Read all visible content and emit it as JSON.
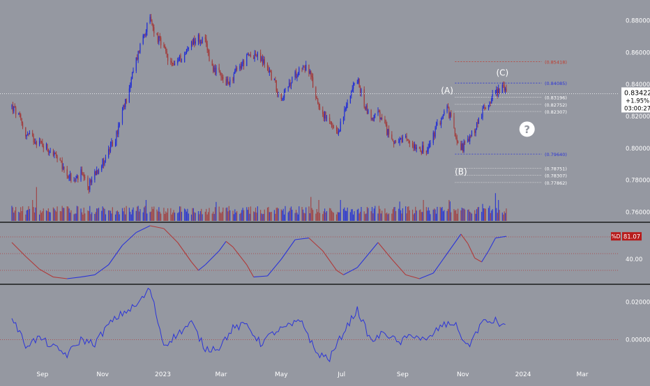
{
  "chart_data": {
    "type": "line",
    "background": "#9598a1",
    "colors": {
      "up": "#1f2bd6",
      "down": "#a23a3a",
      "stoch": "#2b34d8",
      "stoch_down": "#b03a3a",
      "osc": "#2b34d8",
      "fib_red": "#c0392b",
      "fib_blue": "#2b34d8",
      "fib_white": "#e8e8e8",
      "current_price": "#ffffff",
      "stoch_badge": "#b71c1c"
    },
    "x_axis": {
      "labels": [
        {
          "t": "2022-09-01",
          "text": "Sep"
        },
        {
          "t": "2022-11-01",
          "text": "Nov"
        },
        {
          "t": "2023-01-01",
          "text": "2023"
        },
        {
          "t": "2023-03-01",
          "text": "Mar"
        },
        {
          "t": "2023-05-01",
          "text": "May"
        },
        {
          "t": "2023-07-01",
          "text": "Jul"
        },
        {
          "t": "2023-09-01",
          "text": "Sep"
        },
        {
          "t": "2023-11-01",
          "text": "Nov"
        },
        {
          "t": "2024-01-01",
          "text": "2024"
        },
        {
          "t": "2024-03-01",
          "text": "Mar"
        }
      ]
    },
    "price_panel": {
      "ylim": [
        0.755,
        0.885
      ],
      "y_ticks": [
        "0.88000",
        "0.86000",
        "0.84000",
        "0.82000",
        "0.80000",
        "0.78000",
        "0.76000"
      ],
      "y_tick_values": [
        0.88,
        0.86,
        0.84,
        0.82,
        0.8,
        0.78,
        0.76
      ],
      "series_close": [
        [
          "2022-08-01",
          0.826
        ],
        [
          "2022-08-08",
          0.82
        ],
        [
          "2022-08-15",
          0.809
        ],
        [
          "2022-08-22",
          0.806
        ],
        [
          "2022-08-29",
          0.804
        ],
        [
          "2022-09-05",
          0.801
        ],
        [
          "2022-09-12",
          0.797
        ],
        [
          "2022-09-19",
          0.79
        ],
        [
          "2022-09-26",
          0.784
        ],
        [
          "2022-10-03",
          0.779
        ],
        [
          "2022-10-10",
          0.784
        ],
        [
          "2022-10-17",
          0.775
        ],
        [
          "2022-10-24",
          0.785
        ],
        [
          "2022-10-31",
          0.79
        ],
        [
          "2022-11-07",
          0.798
        ],
        [
          "2022-11-14",
          0.806
        ],
        [
          "2022-11-21",
          0.822
        ],
        [
          "2022-11-28",
          0.838
        ],
        [
          "2022-12-05",
          0.855
        ],
        [
          "2022-12-12",
          0.871
        ],
        [
          "2022-12-19",
          0.88
        ],
        [
          "2022-12-26",
          0.87
        ],
        [
          "2023-01-02",
          0.862
        ],
        [
          "2023-01-09",
          0.852
        ],
        [
          "2023-01-16",
          0.855
        ],
        [
          "2023-01-23",
          0.858
        ],
        [
          "2023-01-30",
          0.867
        ],
        [
          "2023-02-06",
          0.869
        ],
        [
          "2023-02-13",
          0.866
        ],
        [
          "2023-02-20",
          0.851
        ],
        [
          "2023-02-27",
          0.846
        ],
        [
          "2023-03-06",
          0.84
        ],
        [
          "2023-03-13",
          0.845
        ],
        [
          "2023-03-20",
          0.851
        ],
        [
          "2023-03-27",
          0.856
        ],
        [
          "2023-04-03",
          0.859
        ],
        [
          "2023-04-10",
          0.856
        ],
        [
          "2023-04-17",
          0.851
        ],
        [
          "2023-04-24",
          0.841
        ],
        [
          "2023-05-01",
          0.832
        ],
        [
          "2023-05-08",
          0.838
        ],
        [
          "2023-05-15",
          0.846
        ],
        [
          "2023-05-22",
          0.852
        ],
        [
          "2023-05-29",
          0.849
        ],
        [
          "2023-06-05",
          0.832
        ],
        [
          "2023-06-12",
          0.822
        ],
        [
          "2023-06-19",
          0.815
        ],
        [
          "2023-06-26",
          0.808
        ],
        [
          "2023-07-03",
          0.82
        ],
        [
          "2023-07-10",
          0.836
        ],
        [
          "2023-07-17",
          0.843
        ],
        [
          "2023-07-24",
          0.828
        ],
        [
          "2023-07-31",
          0.818
        ],
        [
          "2023-08-07",
          0.822
        ],
        [
          "2023-08-14",
          0.813
        ],
        [
          "2023-08-21",
          0.806
        ],
        [
          "2023-08-28",
          0.803
        ],
        [
          "2023-09-04",
          0.805
        ],
        [
          "2023-09-11",
          0.803
        ],
        [
          "2023-09-18",
          0.801
        ],
        [
          "2023-09-25",
          0.797
        ],
        [
          "2023-10-02",
          0.808
        ],
        [
          "2023-10-09",
          0.818
        ],
        [
          "2023-10-16",
          0.825
        ],
        [
          "2023-10-23",
          0.812
        ],
        [
          "2023-10-30",
          0.8
        ],
        [
          "2023-11-06",
          0.804
        ],
        [
          "2023-11-13",
          0.812
        ],
        [
          "2023-11-20",
          0.822
        ],
        [
          "2023-11-27",
          0.829
        ],
        [
          "2023-12-04",
          0.835
        ],
        [
          "2023-12-11",
          0.839
        ],
        [
          "2023-12-15",
          0.834
        ]
      ],
      "current_price": {
        "value": 0.83422,
        "label": "0.83422",
        "change": "+1.95%",
        "countdown": "03:00:27"
      },
      "fib_levels": [
        {
          "value": 0.85418,
          "label": "(0.85418)",
          "color": "fib_red",
          "style": "dashed"
        },
        {
          "value": 0.84085,
          "label": "(0.84085)",
          "color": "fib_blue",
          "style": "dashed"
        },
        {
          "value": 0.83196,
          "label": "(0.83196)",
          "color": "fib_white",
          "style": "dotted"
        },
        {
          "value": 0.82752,
          "label": "(0.82752)",
          "color": "fib_white",
          "style": "dotted"
        },
        {
          "value": 0.82307,
          "label": "(0.82307)",
          "color": "fib_white",
          "style": "dotted"
        },
        {
          "value": 0.7964,
          "label": "(0.79640)",
          "color": "fib_blue",
          "style": "dashed"
        },
        {
          "value": 0.78751,
          "label": "(0.78751)",
          "color": "fib_white",
          "style": "dotted"
        },
        {
          "value": 0.78307,
          "label": "(0.78307)",
          "color": "fib_white",
          "style": "dotted"
        },
        {
          "value": 0.77862,
          "label": "(0.77862)",
          "color": "fib_white",
          "style": "dotted"
        }
      ],
      "fib_x_range": [
        "2023-10-24",
        "2024-01-20"
      ],
      "wave_labels": [
        {
          "text": "(A)",
          "t": "2023-10-16",
          "y": 0.8345
        },
        {
          "text": "(B)",
          "t": "2023-10-30",
          "y": 0.7835
        },
        {
          "text": "(C)",
          "t": "2023-12-11",
          "y": 0.8455
        }
      ],
      "question_marker": {
        "text": "?",
        "t": "2024-01-05",
        "y": 0.812
      }
    },
    "volume": {
      "min_weekly": 0.3,
      "max_weekly": 1.0
    },
    "stoch_panel": {
      "ylim": [
        -5,
        105
      ],
      "ticks": [
        {
          "value": 40,
          "label": "40.00"
        }
      ],
      "levels": [
        80,
        50,
        20
      ],
      "badge_name": "%D",
      "badge_value": "81.07",
      "series": [
        [
          "2022-08-01",
          70
        ],
        [
          "2022-08-15",
          45
        ],
        [
          "2022-08-29",
          22
        ],
        [
          "2022-09-12",
          8
        ],
        [
          "2022-09-26",
          5
        ],
        [
          "2022-10-10",
          8
        ],
        [
          "2022-10-24",
          12
        ],
        [
          "2022-11-07",
          30
        ],
        [
          "2022-11-21",
          65
        ],
        [
          "2022-12-05",
          88
        ],
        [
          "2022-12-19",
          100
        ],
        [
          "2023-01-02",
          95
        ],
        [
          "2023-01-16",
          70
        ],
        [
          "2023-01-30",
          35
        ],
        [
          "2023-02-06",
          20
        ],
        [
          "2023-02-13",
          30
        ],
        [
          "2023-02-27",
          55
        ],
        [
          "2023-03-06",
          72
        ],
        [
          "2023-03-13",
          62
        ],
        [
          "2023-03-27",
          30
        ],
        [
          "2023-04-03",
          8
        ],
        [
          "2023-04-17",
          10
        ],
        [
          "2023-05-01",
          40
        ],
        [
          "2023-05-15",
          75
        ],
        [
          "2023-05-29",
          78
        ],
        [
          "2023-06-12",
          55
        ],
        [
          "2023-06-26",
          20
        ],
        [
          "2023-07-03",
          12
        ],
        [
          "2023-07-17",
          25
        ],
        [
          "2023-08-07",
          70
        ],
        [
          "2023-08-21",
          40
        ],
        [
          "2023-09-04",
          12
        ],
        [
          "2023-09-18",
          5
        ],
        [
          "2023-10-02",
          15
        ],
        [
          "2023-10-16",
          50
        ],
        [
          "2023-10-30",
          85
        ],
        [
          "2023-11-06",
          68
        ],
        [
          "2023-11-13",
          42
        ],
        [
          "2023-11-20",
          35
        ],
        [
          "2023-11-27",
          55
        ],
        [
          "2023-12-04",
          78
        ],
        [
          "2023-12-15",
          81
        ]
      ]
    },
    "osc_panel": {
      "ylim": [
        -0.012,
        0.029
      ],
      "ticks": [
        {
          "value": 0.02,
          "label": "0.02000"
        },
        {
          "value": 0.0,
          "label": "0.00000"
        }
      ],
      "zero_line": 0.0,
      "series": [
        [
          "2022-08-01",
          0.012
        ],
        [
          "2022-08-15",
          -0.003
        ],
        [
          "2022-08-29",
          0.001
        ],
        [
          "2022-09-12",
          -0.004
        ],
        [
          "2022-09-26",
          -0.008
        ],
        [
          "2022-10-10",
          0.0
        ],
        [
          "2022-10-24",
          -0.002
        ],
        [
          "2022-11-07",
          0.008
        ],
        [
          "2022-11-21",
          0.014
        ],
        [
          "2022-12-05",
          0.018
        ],
        [
          "2022-12-19",
          0.027
        ],
        [
          "2023-01-02",
          -0.003
        ],
        [
          "2023-01-16",
          0.003
        ],
        [
          "2023-01-30",
          0.009
        ],
        [
          "2023-02-13",
          -0.005
        ],
        [
          "2023-02-27",
          -0.004
        ],
        [
          "2023-03-13",
          0.006
        ],
        [
          "2023-03-27",
          0.008
        ],
        [
          "2023-04-10",
          -0.002
        ],
        [
          "2023-04-24",
          0.004
        ],
        [
          "2023-05-08",
          0.007
        ],
        [
          "2023-05-22",
          0.01
        ],
        [
          "2023-06-05",
          -0.007
        ],
        [
          "2023-06-19",
          -0.01
        ],
        [
          "2023-07-03",
          0.004
        ],
        [
          "2023-07-17",
          0.016
        ],
        [
          "2023-07-31",
          -0.001
        ],
        [
          "2023-08-14",
          0.004
        ],
        [
          "2023-08-28",
          -0.002
        ],
        [
          "2023-09-11",
          0.003
        ],
        [
          "2023-09-25",
          -0.001
        ],
        [
          "2023-10-09",
          0.007
        ],
        [
          "2023-10-23",
          0.009
        ],
        [
          "2023-11-06",
          -0.004
        ],
        [
          "2023-11-20",
          0.009
        ],
        [
          "2023-12-04",
          0.01
        ],
        [
          "2023-12-15",
          0.006
        ]
      ]
    }
  }
}
